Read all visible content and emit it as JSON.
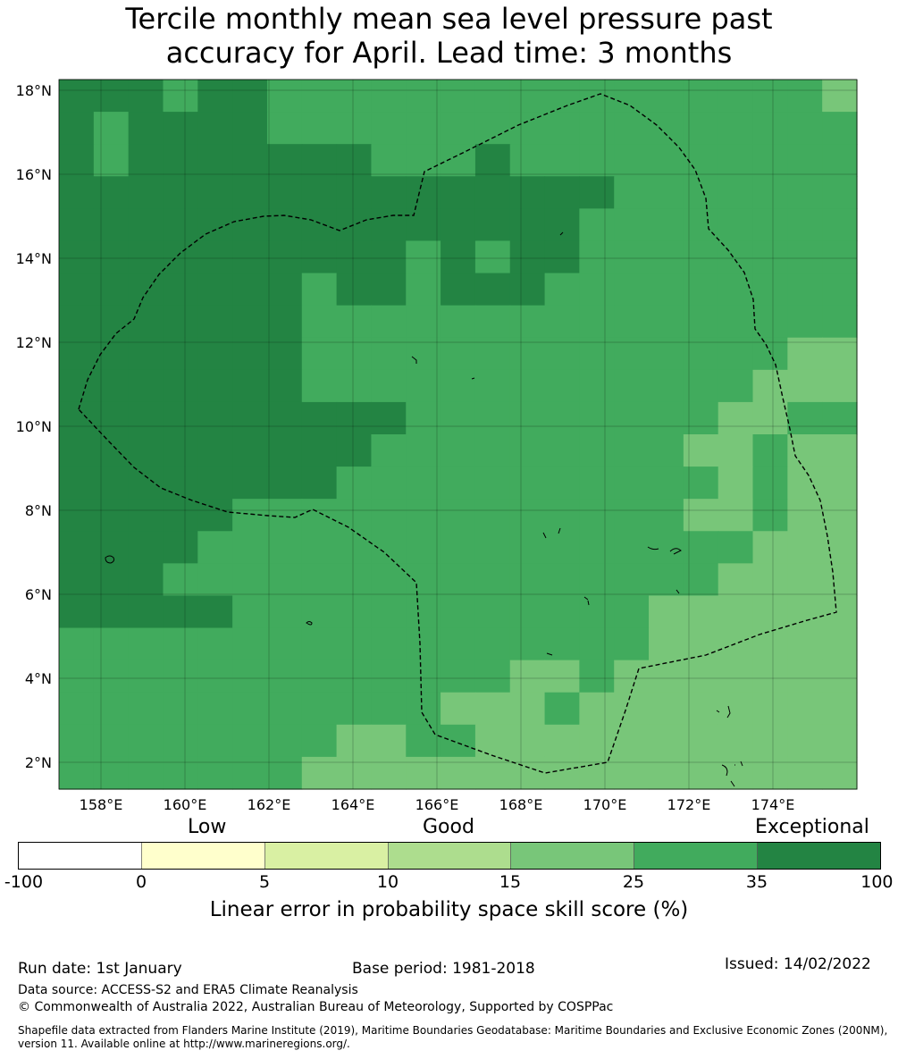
{
  "title": {
    "line1": "Tercile monthly mean sea level pressure past",
    "line2": "accuracy for April. Lead time: 3 months"
  },
  "map": {
    "lon_ticks": [
      "158°E",
      "160°E",
      "162°E",
      "164°E",
      "166°E",
      "168°E",
      "170°E",
      "172°E",
      "174°E"
    ],
    "lat_ticks": [
      "18°N",
      "16°N",
      "14°N",
      "12°N",
      "10°N",
      "8°N",
      "6°N",
      "4°N",
      "2°N"
    ],
    "colors": {
      "c15_25": "#78c679",
      "c25_35": "#41ab5d",
      "c35_100": "#238443",
      "border": "#000000"
    }
  },
  "colorbar": {
    "category_labels": {
      "low": "Low",
      "good": "Good",
      "exceptional": "Exceptional"
    },
    "ticks": [
      "-100",
      "0",
      "5",
      "10",
      "15",
      "25",
      "35",
      "100"
    ],
    "colors": [
      "#ffffff",
      "#ffffcc",
      "#d9f0a3",
      "#addd8e",
      "#78c679",
      "#41ab5d",
      "#238443"
    ],
    "axis_label": "Linear error in probability space skill score (%)"
  },
  "footer": {
    "run_date": "Run date: 1st January",
    "base_period": "Base period: 1981-2018",
    "issued": "Issued: 14/02/2022",
    "data_source": "Data source: ACCESS-S2 and ERA5 Climate Reanalysis",
    "copyright": "© Commonwealth of Australia 2022, Australian Bureau of Meteorology, Supported by COSPPac",
    "shapefile": "Shapefile data extracted from Flanders Marine Institute (2019), Maritime Boundaries Geodatabase: Maritime Boundaries and Exclusive Economic Zones (200NM), version 11. Available online at http://www.marineregions.org/."
  }
}
